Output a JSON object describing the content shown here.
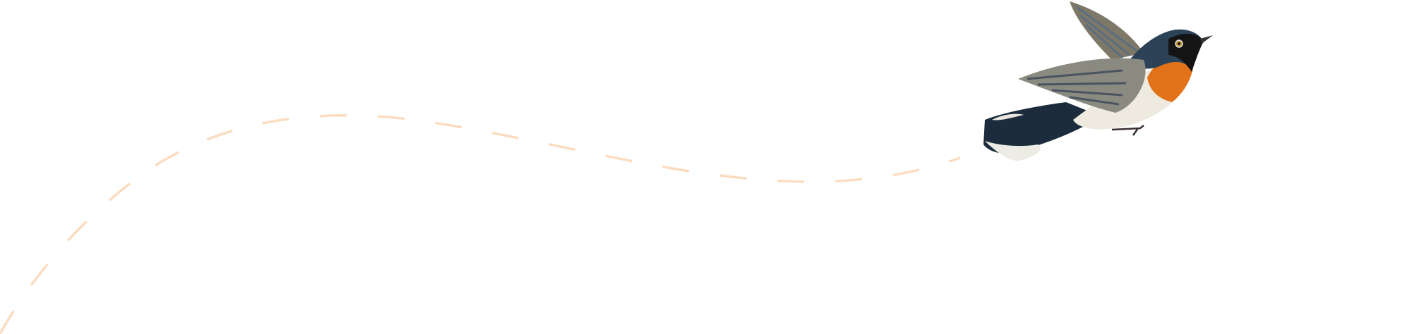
{
  "illustration": {
    "subject": "bird-icon",
    "path_style": "dashed",
    "colors": {
      "background": "#ffffff",
      "flight_path": "#fcdcc0",
      "bird_back": "#2b4257",
      "bird_breast": "#e2721a",
      "bird_belly": "#efeae0",
      "bird_wing": "#8a8a80",
      "bird_mask": "#141414"
    }
  }
}
